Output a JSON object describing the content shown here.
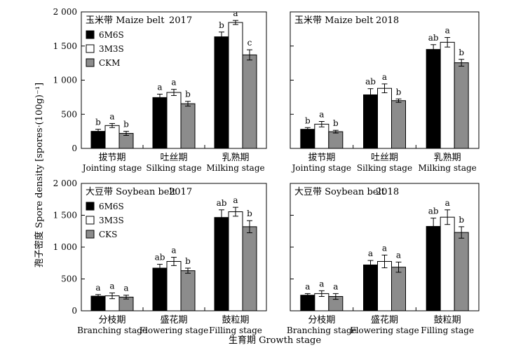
{
  "figure": {
    "ylabel": "孢子密度 Spore density [spores·(100g)⁻¹]",
    "xlabel": "生育期 Growth stage"
  },
  "chart_data": [
    {
      "id": "maize-2017",
      "type": "bar",
      "belt_label": "玉米带 Maize belt",
      "year": "2017",
      "ylim": [
        0,
        2000
      ],
      "yticks": [
        "0",
        "500",
        "1 000",
        "1 500",
        "2 000"
      ],
      "show_legend": true,
      "categories": [
        {
          "zh": "拔节期",
          "en": "Jointing stage"
        },
        {
          "zh": "吐丝期",
          "en": "Silking stage"
        },
        {
          "zh": "乳熟期",
          "en": "Milking stage"
        }
      ],
      "series": [
        {
          "name": "6M6S",
          "color": "#000000",
          "values": [
            250,
            745,
            1635
          ],
          "errors": [
            30,
            50,
            70
          ],
          "letters": [
            "b",
            "a",
            "b"
          ]
        },
        {
          "name": "3M3S",
          "color": "#ffffff",
          "values": [
            335,
            820,
            1845
          ],
          "errors": [
            30,
            45,
            30
          ],
          "letters": [
            "a",
            "a",
            "a"
          ]
        },
        {
          "name": "CKM",
          "color": "#8c8c8c",
          "values": [
            220,
            655,
            1370
          ],
          "errors": [
            30,
            35,
            75
          ],
          "letters": [
            "b",
            "b",
            "c"
          ]
        }
      ]
    },
    {
      "id": "maize-2018",
      "type": "bar",
      "belt_label": "玉米带 Maize belt",
      "year": "2018",
      "ylim": [
        0,
        2000
      ],
      "yticks": [
        "0",
        "500",
        "1 000",
        "1 500",
        "2 000"
      ],
      "show_legend": false,
      "categories": [
        {
          "zh": "拔节期",
          "en": "Jointing stage"
        },
        {
          "zh": "吐丝期",
          "en": "Silking stage"
        },
        {
          "zh": "乳熟期",
          "en": "Milking stage"
        }
      ],
      "series": [
        {
          "name": "6M6S",
          "color": "#000000",
          "values": [
            280,
            785,
            1450
          ],
          "errors": [
            25,
            90,
            70
          ],
          "letters": [
            "b",
            "ab",
            "ab"
          ]
        },
        {
          "name": "3M3S",
          "color": "#ffffff",
          "values": [
            355,
            880,
            1555
          ],
          "errors": [
            40,
            65,
            70
          ],
          "letters": [
            "a",
            "a",
            "a"
          ]
        },
        {
          "name": "CKM",
          "color": "#8c8c8c",
          "values": [
            245,
            700,
            1255
          ],
          "errors": [
            20,
            25,
            50
          ],
          "letters": [
            "b",
            "b",
            "b"
          ]
        }
      ]
    },
    {
      "id": "soybean-2017",
      "type": "bar",
      "belt_label": "大豆带 Soybean belt",
      "year": "2017",
      "ylim": [
        0,
        2000
      ],
      "yticks": [
        "0",
        "500",
        "1 000",
        "1 500",
        "2 000"
      ],
      "show_legend": true,
      "categories": [
        {
          "zh": "分枝期",
          "en": "Branching stage"
        },
        {
          "zh": "盛花期",
          "en": "Flowering stage"
        },
        {
          "zh": "鼓粒期",
          "en": "Filling stage"
        }
      ],
      "series": [
        {
          "name": "6M6S",
          "color": "#000000",
          "values": [
            230,
            670,
            1465
          ],
          "errors": [
            25,
            60,
            120
          ],
          "letters": [
            "a",
            "ab",
            "ab"
          ]
        },
        {
          "name": "3M3S",
          "color": "#ffffff",
          "values": [
            235,
            775,
            1555
          ],
          "errors": [
            45,
            65,
            70
          ],
          "letters": [
            "a",
            "a",
            "a"
          ]
        },
        {
          "name": "CKS",
          "color": "#8c8c8c",
          "values": [
            215,
            630,
            1320
          ],
          "errors": [
            30,
            40,
            95
          ],
          "letters": [
            "a",
            "b",
            "b"
          ]
        }
      ]
    },
    {
      "id": "soybean-2018",
      "type": "bar",
      "belt_label": "大豆带 Soybean belt",
      "year": "2018",
      "ylim": [
        0,
        2000
      ],
      "yticks": [
        "0",
        "500",
        "1 000",
        "1 500",
        "2 000"
      ],
      "show_legend": false,
      "categories": [
        {
          "zh": "分枝期",
          "en": "Branching stage"
        },
        {
          "zh": "盛花期",
          "en": "Flowering stage"
        },
        {
          "zh": "鼓粒期",
          "en": "Filling stage"
        }
      ],
      "series": [
        {
          "name": "6M6S",
          "color": "#000000",
          "values": [
            245,
            720,
            1325
          ],
          "errors": [
            25,
            70,
            130
          ],
          "letters": [
            "a",
            "a",
            "ab"
          ]
        },
        {
          "name": "3M3S",
          "color": "#ffffff",
          "values": [
            270,
            775,
            1470
          ],
          "errors": [
            45,
            100,
            115
          ],
          "letters": [
            "a",
            "a",
            "a"
          ]
        },
        {
          "name": "CKS",
          "color": "#8c8c8c",
          "values": [
            225,
            685,
            1230
          ],
          "errors": [
            45,
            80,
            90
          ],
          "letters": [
            "a",
            "a",
            "b"
          ]
        }
      ]
    }
  ]
}
